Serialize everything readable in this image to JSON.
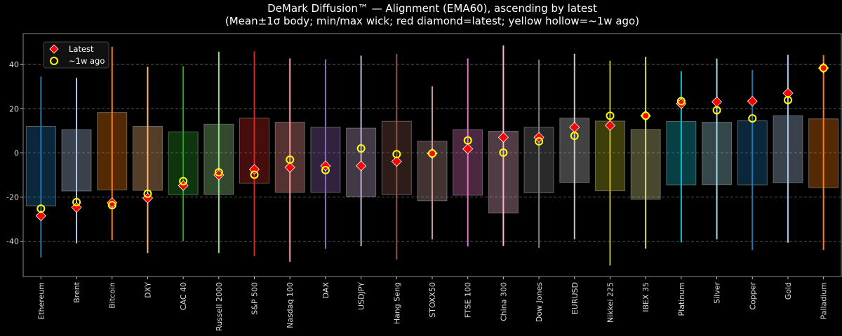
{
  "chart_data": {
    "type": "box",
    "title": "DeMark Diffusion™ — Alignment (EMA60), ascending by latest",
    "subtitle": "(Mean±1σ body; min/max wick; red diamond=latest; yellow hollow=~1w ago)",
    "xlabel": "",
    "ylabel": "",
    "ylim": [
      -56,
      54
    ],
    "yticks": [
      -40,
      -20,
      0,
      20,
      40
    ],
    "grid": "horizontal dashed",
    "legend": {
      "placement": "top-left",
      "entries": [
        "Latest",
        "~1w ago"
      ]
    },
    "marker_colors": {
      "latest": "#ff0000",
      "prior": "#ffff00"
    },
    "categories": [
      "Ethereum",
      "Brent",
      "Bitcoin",
      "DXY",
      "CAC 40",
      "Russell 2000",
      "S&P 500",
      "Nasdaq 100",
      "DAX",
      "USDJPY",
      "Hang Seng",
      "STOXX50",
      "FTSE 100",
      "China 300",
      "Dow Jones",
      "EURUSD",
      "Nikkei 225",
      "IBEX 35",
      "Platinum",
      "Silver",
      "Copper",
      "Gold",
      "Palladium"
    ],
    "colors": [
      "#1f77b4",
      "#aec7e8",
      "#ff7f0e",
      "#ffbb78",
      "#2ca02c",
      "#98df8a",
      "#d62728",
      "#ff9896",
      "#9467bd",
      "#c5b0d5",
      "#8c564b",
      "#c49c94",
      "#e377c2",
      "#f7b6d2",
      "#7f7f7f",
      "#c7c7c7",
      "#bcbd22",
      "#dbdb8d",
      "#17becf",
      "#9edae5",
      "#1f77b4",
      "#aec7e8",
      "#ff7f0e"
    ],
    "body_high": [
      12,
      10.5,
      18.3,
      12,
      9.5,
      13,
      15.7,
      13.9,
      11.6,
      11.2,
      14.3,
      5.3,
      10.5,
      9.8,
      11.6,
      15.7,
      14.4,
      10.6,
      14.2,
      13.9,
      14.5,
      16.8,
      15.4
    ],
    "body_low": [
      -24,
      -17.3,
      -16.8,
      -17,
      -19,
      -18.8,
      -13.8,
      -17.9,
      -17.9,
      -19.8,
      -18.8,
      -21.7,
      -19.2,
      -27.2,
      -18.1,
      -13.4,
      -17.2,
      -21,
      -14.5,
      -14.4,
      -14.5,
      -13.5,
      -15.8
    ],
    "max": [
      34.5,
      34,
      48,
      39,
      39.2,
      45.8,
      46,
      42.8,
      42.3,
      44,
      44.8,
      30.1,
      42.8,
      48.7,
      42.2,
      44.9,
      41.7,
      43.5,
      37,
      42.7,
      37.5,
      44.4,
      44.3
    ],
    "min": [
      -47.4,
      -41,
      -39.5,
      -45.4,
      -40,
      -45.4,
      -46.8,
      -49.3,
      -43.5,
      -42.3,
      -48.3,
      -39.2,
      -42.4,
      -42.2,
      -43.1,
      -39.2,
      -51,
      -43.4,
      -40.6,
      -39.2,
      -44,
      -40.7,
      -44
    ],
    "latest": [
      -28.5,
      -24.7,
      -22.6,
      -20.5,
      -14.8,
      -10,
      -7.5,
      -6.6,
      -5.9,
      -5.9,
      -3.9,
      -0.3,
      1.8,
      7,
      7,
      11.6,
      12.4,
      16.8,
      22.3,
      23.1,
      23.4,
      27,
      38.4
    ],
    "prior": [
      -25.3,
      -22.3,
      -23.7,
      -18.5,
      -12.8,
      -8.8,
      -9.9,
      -3.1,
      -7.8,
      2,
      -0.6,
      -0.3,
      5.6,
      0.1,
      5.2,
      7.7,
      16.8,
      16.8,
      23.4,
      19.3,
      15.6,
      23.9,
      38.4
    ]
  }
}
